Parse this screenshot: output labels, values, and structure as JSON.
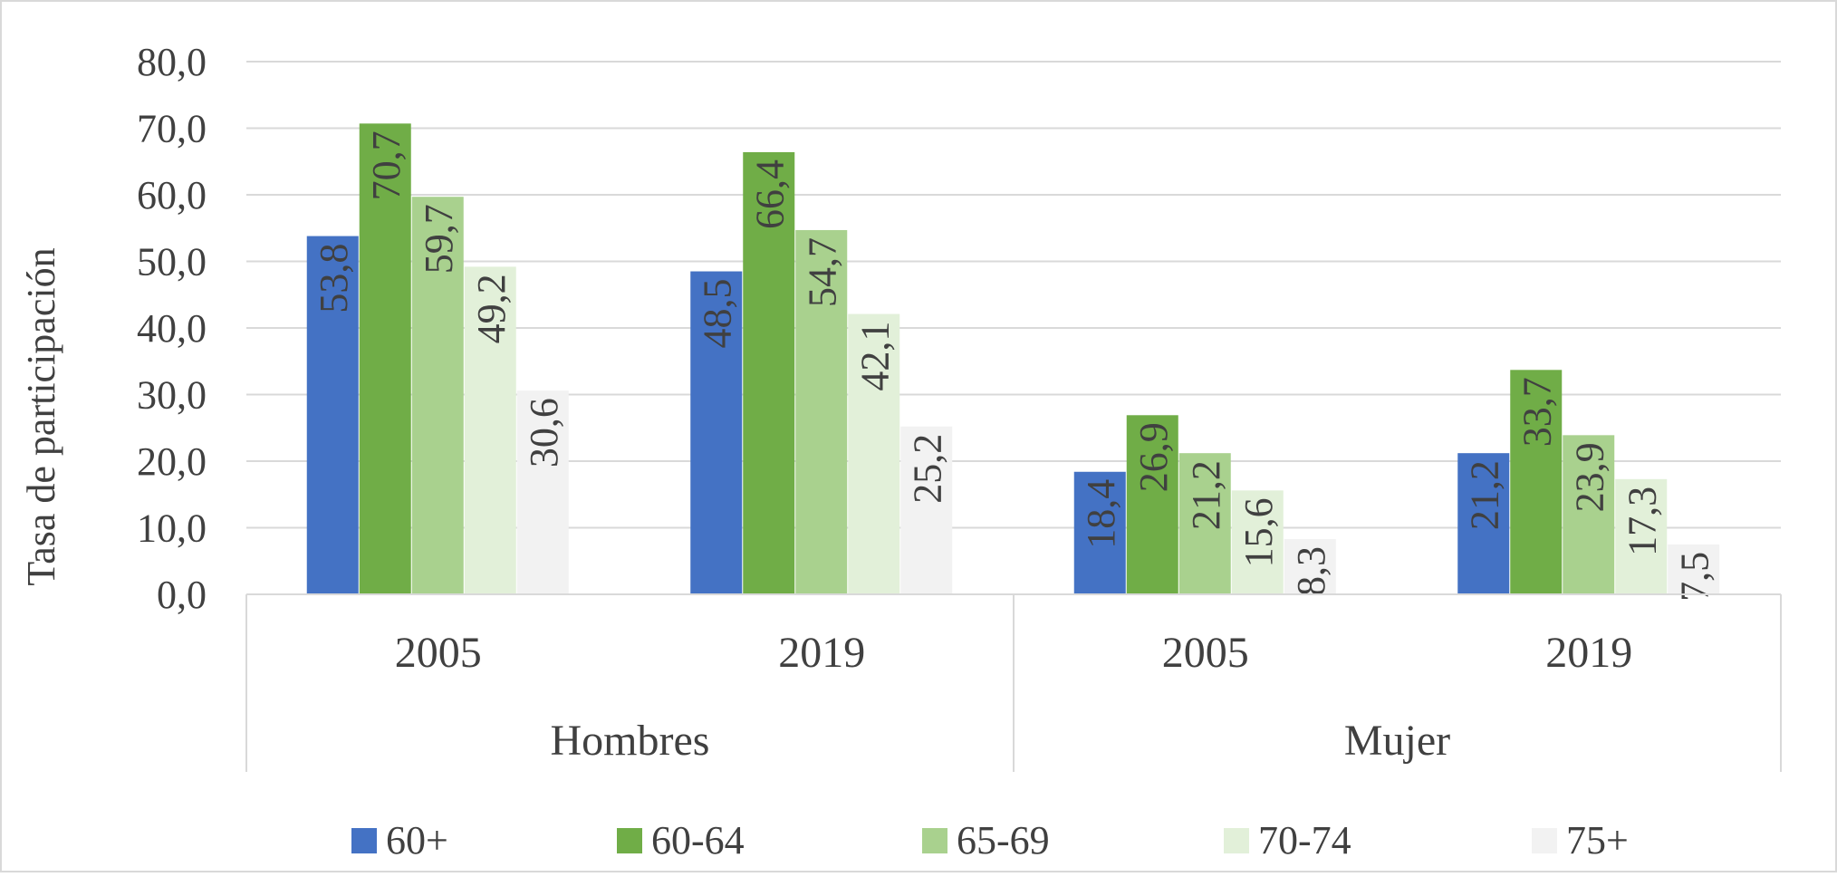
{
  "chart_data": {
    "type": "bar",
    "ylabel": "Tasa de participación",
    "ylim": [
      0,
      80
    ],
    "yticks": [
      "0,0",
      "10,0",
      "20,0",
      "30,0",
      "40,0",
      "50,0",
      "60,0",
      "70,0",
      "80,0"
    ],
    "grid": true,
    "legend_position": "bottom",
    "groups": [
      {
        "label": "Hombres",
        "categories": [
          {
            "label": "2005",
            "values": [
              53.8,
              70.7,
              59.7,
              49.2,
              30.6
            ],
            "labels": [
              "53,8",
              "70,7",
              "59,7",
              "49,2",
              "30,6"
            ]
          },
          {
            "label": "2019",
            "values": [
              48.5,
              66.4,
              54.7,
              42.1,
              25.2
            ],
            "labels": [
              "48,5",
              "66,4",
              "54,7",
              "42,1",
              "25,2"
            ]
          }
        ]
      },
      {
        "label": "Mujer",
        "categories": [
          {
            "label": "2005",
            "values": [
              18.4,
              26.9,
              21.2,
              15.6,
              8.3
            ],
            "labels": [
              "18,4",
              "26,9",
              "21,2",
              "15,6",
              "8,3"
            ]
          },
          {
            "label": "2019",
            "values": [
              21.2,
              33.7,
              23.9,
              17.3,
              7.5
            ],
            "labels": [
              "21,2",
              "33,7",
              "23,9",
              "17,3",
              "7,5"
            ]
          }
        ]
      }
    ],
    "series": [
      {
        "name": "60+",
        "color": "#4472C4"
      },
      {
        "name": "60-64",
        "color": "#70AD47"
      },
      {
        "name": "65-69",
        "color": "#A9D18E"
      },
      {
        "name": "70-74",
        "color": "#E2F0D9"
      },
      {
        "name": "75+",
        "color": "#F2F2F2"
      }
    ]
  }
}
